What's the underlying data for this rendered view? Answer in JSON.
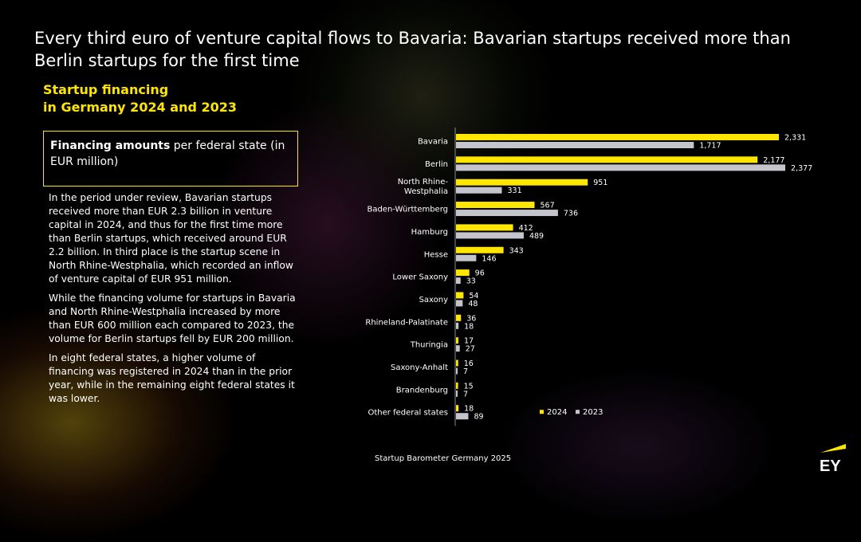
{
  "header": {
    "title": "Every third euro of venture capital flows to Bavaria: Bavarian startups received more than Berlin startups for the first time",
    "subtitle_line1": "Startup financing",
    "subtitle_line2": "in Germany 2024 and 2023"
  },
  "note": {
    "bold": "Financing amounts",
    "rest": " per federal state (in EUR million)"
  },
  "body": {
    "paragraphs": [
      "In the period under review, Bavarian startups received more than EUR 2.3 billion in venture capital in 2024, and thus for the first time more than Berlin startups, which received around EUR 2.2 billion. In third place is the startup scene in North Rhine-Westphalia, which recorded an inflow of venture capital of EUR 951 million.",
      "While the financing volume for startups in Bavaria and North Rhine-Westphalia increased by more than EUR 600 million each compared to 2023, the volume for Berlin startups fell by EUR 200 million.",
      "In eight federal states, a higher volume of financing was registered in 2024 than in the prior year, while in the remaining eight federal states it was lower."
    ]
  },
  "footer": {
    "source": "Startup Barometer Germany 2025"
  },
  "logo": {
    "text": "EY",
    "icon": "ey-logo-icon"
  },
  "colors": {
    "series_2024": "#ffe600",
    "series_2023": "#c4c4cd",
    "accent": "#ffe600"
  },
  "chart_data": {
    "type": "bar",
    "orientation": "horizontal",
    "categories": [
      [
        "Bavaria"
      ],
      [
        "Berlin"
      ],
      [
        "North Rhine-",
        "Westphalia"
      ],
      [
        "Baden-Württemberg"
      ],
      [
        "Hamburg"
      ],
      [
        "Hesse"
      ],
      [
        "Lower Saxony"
      ],
      [
        "Saxony"
      ],
      [
        "Rhineland-Palatinate"
      ],
      [
        "Thuringia"
      ],
      [
        "Saxony-Anhalt"
      ],
      [
        "Brandenburg"
      ],
      [
        "Other federal states"
      ]
    ],
    "series": [
      {
        "name": "2024",
        "values": [
          2331,
          2177,
          951,
          567,
          412,
          343,
          96,
          54,
          36,
          17,
          16,
          15,
          18
        ],
        "labels": [
          "2,331",
          "2,177",
          "951",
          "567",
          "412",
          "343",
          "96",
          "54",
          "36",
          "17",
          "16",
          "15",
          "18"
        ]
      },
      {
        "name": "2023",
        "values": [
          1717,
          2377,
          331,
          736,
          489,
          146,
          33,
          48,
          18,
          27,
          7,
          7,
          89
        ],
        "labels": [
          "1,717",
          "2,377",
          "331",
          "736",
          "489",
          "146",
          "33",
          "48",
          "18",
          "27",
          "7",
          "7",
          "89"
        ]
      }
    ],
    "xlim": [
      0,
      2377
    ],
    "legend": "bottom-right",
    "grid": false
  }
}
